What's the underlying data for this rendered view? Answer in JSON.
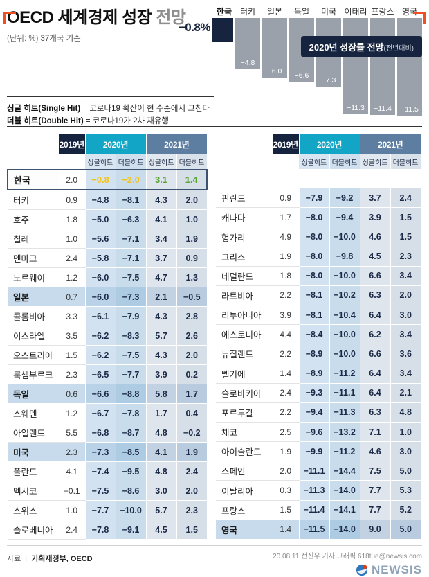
{
  "header": {
    "title_strong": "OECD 세계경제 성장",
    "title_light": " 전망",
    "unit_note": "(단위: %)",
    "basis_note": "37개국 기준"
  },
  "chart_data": {
    "type": "bar",
    "title": "2020년 성장률 전망",
    "title_sub": "(전년대비)",
    "categories": [
      "한국",
      "터키",
      "일본",
      "독일",
      "미국",
      "이태리",
      "프랑스",
      "영국"
    ],
    "values": [
      -0.8,
      -4.8,
      -6.0,
      -6.6,
      -7.3,
      -11.3,
      -11.4,
      -11.5
    ],
    "value_labels": [
      "−0.8%",
      "−4.8",
      "−6.0",
      "−6.6",
      "−7.3",
      "−11.3",
      "−11.4",
      "−11.5"
    ],
    "unit": "%",
    "highlight_index": 0,
    "bar_color": "#9aa1ab",
    "highlight_color": "#17243f",
    "legend_position": "overlay-right",
    "grid": false
  },
  "legend": {
    "line1_term": "싱글 히트(Single Hit)",
    "line1_desc": " = 코로나19 확산이 현 수준에서 그친다",
    "line2_term": "더블 히트(Double Hit)",
    "line2_desc": " = 코로나19가 2차 재유행"
  },
  "table_headers": {
    "y2019": "2019년",
    "y2020": "2020년",
    "y2021": "2021년",
    "single": "싱글히트",
    "double": "더블히트"
  },
  "left_table": [
    {
      "name": "한국",
      "y2019": "2.0",
      "s2020": "−0.8",
      "d2020": "−2.0",
      "s2021": "3.1",
      "d2021": "1.4",
      "hl": "korea"
    },
    {
      "name": "터키",
      "y2019": "0.9",
      "s2020": "−4.8",
      "d2020": "−8.1",
      "s2021": "4.3",
      "d2021": "2.0",
      "hl": ""
    },
    {
      "name": "호주",
      "y2019": "1.8",
      "s2020": "−5.0",
      "d2020": "−6.3",
      "s2021": "4.1",
      "d2021": "1.0",
      "hl": ""
    },
    {
      "name": "칠레",
      "y2019": "1.0",
      "s2020": "−5.6",
      "d2020": "−7.1",
      "s2021": "3.4",
      "d2021": "1.9",
      "hl": ""
    },
    {
      "name": "덴마크",
      "y2019": "2.4",
      "s2020": "−5.8",
      "d2020": "−7.1",
      "s2021": "3.7",
      "d2021": "0.9",
      "hl": ""
    },
    {
      "name": "노르웨이",
      "y2019": "1.2",
      "s2020": "−6.0",
      "d2020": "−7.5",
      "s2021": "4.7",
      "d2021": "1.3",
      "hl": ""
    },
    {
      "name": "일본",
      "y2019": "0.7",
      "s2020": "−6.0",
      "d2020": "−7.3",
      "s2021": "2.1",
      "d2021": "−0.5",
      "hl": "row"
    },
    {
      "name": "콜롬비아",
      "y2019": "3.3",
      "s2020": "−6.1",
      "d2020": "−7.9",
      "s2021": "4.3",
      "d2021": "2.8",
      "hl": ""
    },
    {
      "name": "이스라엘",
      "y2019": "3.5",
      "s2020": "−6.2",
      "d2020": "−8.3",
      "s2021": "5.7",
      "d2021": "2.6",
      "hl": ""
    },
    {
      "name": "오스트리아",
      "y2019": "1.5",
      "s2020": "−6.2",
      "d2020": "−7.5",
      "s2021": "4.3",
      "d2021": "2.0",
      "hl": ""
    },
    {
      "name": "룩셈부르크",
      "y2019": "2.3",
      "s2020": "−6.5",
      "d2020": "−7.7",
      "s2021": "3.9",
      "d2021": "0.2",
      "hl": ""
    },
    {
      "name": "독일",
      "y2019": "0.6",
      "s2020": "−6.6",
      "d2020": "−8.8",
      "s2021": "5.8",
      "d2021": "1.7",
      "hl": "row"
    },
    {
      "name": "스웨덴",
      "y2019": "1.2",
      "s2020": "−6.7",
      "d2020": "−7.8",
      "s2021": "1.7",
      "d2021": "0.4",
      "hl": ""
    },
    {
      "name": "아일랜드",
      "y2019": "5.5",
      "s2020": "−6.8",
      "d2020": "−8.7",
      "s2021": "4.8",
      "d2021": "−0.2",
      "hl": ""
    },
    {
      "name": "미국",
      "y2019": "2.3",
      "s2020": "−7.3",
      "d2020": "−8.5",
      "s2021": "4.1",
      "d2021": "1.9",
      "hl": "row"
    },
    {
      "name": "폴란드",
      "y2019": "4.1",
      "s2020": "−7.4",
      "d2020": "−9.5",
      "s2021": "4.8",
      "d2021": "2.4",
      "hl": ""
    },
    {
      "name": "멕시코",
      "y2019": "−0.1",
      "s2020": "−7.5",
      "d2020": "−8.6",
      "s2021": "3.0",
      "d2021": "2.0",
      "hl": ""
    },
    {
      "name": "스위스",
      "y2019": "1.0",
      "s2020": "−7.7",
      "d2020": "−10.0",
      "s2021": "5.7",
      "d2021": "2.3",
      "hl": ""
    },
    {
      "name": "슬로베니아",
      "y2019": "2.4",
      "s2020": "−7.8",
      "d2020": "−9.1",
      "s2021": "4.5",
      "d2021": "1.5",
      "hl": ""
    }
  ],
  "right_table": [
    {
      "name": "핀란드",
      "y2019": "0.9",
      "s2020": "−7.9",
      "d2020": "−9.2",
      "s2021": "3.7",
      "d2021": "2.4",
      "hl": ""
    },
    {
      "name": "캐나다",
      "y2019": "1.7",
      "s2020": "−8.0",
      "d2020": "−9.4",
      "s2021": "3.9",
      "d2021": "1.5",
      "hl": ""
    },
    {
      "name": "헝가리",
      "y2019": "4.9",
      "s2020": "−8.0",
      "d2020": "−10.0",
      "s2021": "4.6",
      "d2021": "1.5",
      "hl": ""
    },
    {
      "name": "그리스",
      "y2019": "1.9",
      "s2020": "−8.0",
      "d2020": "−9.8",
      "s2021": "4.5",
      "d2021": "2.3",
      "hl": ""
    },
    {
      "name": "네덜란드",
      "y2019": "1.8",
      "s2020": "−8.0",
      "d2020": "−10.0",
      "s2021": "6.6",
      "d2021": "3.4",
      "hl": ""
    },
    {
      "name": "라트비아",
      "y2019": "2.2",
      "s2020": "−8.1",
      "d2020": "−10.2",
      "s2021": "6.3",
      "d2021": "2.0",
      "hl": ""
    },
    {
      "name": "리투아니아",
      "y2019": "3.9",
      "s2020": "−8.1",
      "d2020": "−10.4",
      "s2021": "6.4",
      "d2021": "3.0",
      "hl": ""
    },
    {
      "name": "에스토니아",
      "y2019": "4.4",
      "s2020": "−8.4",
      "d2020": "−10.0",
      "s2021": "6.2",
      "d2021": "3.4",
      "hl": ""
    },
    {
      "name": "뉴질랜드",
      "y2019": "2.2",
      "s2020": "−8.9",
      "d2020": "−10.0",
      "s2021": "6.6",
      "d2021": "3.6",
      "hl": ""
    },
    {
      "name": "벨기에",
      "y2019": "1.4",
      "s2020": "−8.9",
      "d2020": "−11.2",
      "s2021": "6.4",
      "d2021": "3.4",
      "hl": ""
    },
    {
      "name": "슬로바키아",
      "y2019": "2.4",
      "s2020": "−9.3",
      "d2020": "−11.1",
      "s2021": "6.4",
      "d2021": "2.1",
      "hl": ""
    },
    {
      "name": "포르투갈",
      "y2019": "2.2",
      "s2020": "−9.4",
      "d2020": "−11.3",
      "s2021": "6.3",
      "d2021": "4.8",
      "hl": ""
    },
    {
      "name": "체코",
      "y2019": "2.5",
      "s2020": "−9.6",
      "d2020": "−13.2",
      "s2021": "7.1",
      "d2021": "1.0",
      "hl": ""
    },
    {
      "name": "아이슬란드",
      "y2019": "1.9",
      "s2020": "−9.9",
      "d2020": "−11.2",
      "s2021": "4.6",
      "d2021": "3.0",
      "hl": ""
    },
    {
      "name": "스페인",
      "y2019": "2.0",
      "s2020": "−11.1",
      "d2020": "−14.4",
      "s2021": "7.5",
      "d2021": "5.0",
      "hl": ""
    },
    {
      "name": "이탈리아",
      "y2019": "0.3",
      "s2020": "−11.3",
      "d2020": "−14.0",
      "s2021": "7.7",
      "d2021": "5.3",
      "hl": ""
    },
    {
      "name": "프랑스",
      "y2019": "1.5",
      "s2020": "−11.4",
      "d2020": "−14.1",
      "s2021": "7.7",
      "d2021": "5.2",
      "hl": ""
    },
    {
      "name": "영국",
      "y2019": "1.4",
      "s2020": "−11.5",
      "d2020": "−14.0",
      "s2021": "9.0",
      "d2021": "5.0",
      "hl": "row"
    }
  ],
  "footer": {
    "source_label": "자료",
    "source_value": "기획재정부, OECD",
    "credit": "20.08.11 전진우 기자 그래픽 618tue@newsis.com",
    "logo_text": "NEWSIS"
  }
}
